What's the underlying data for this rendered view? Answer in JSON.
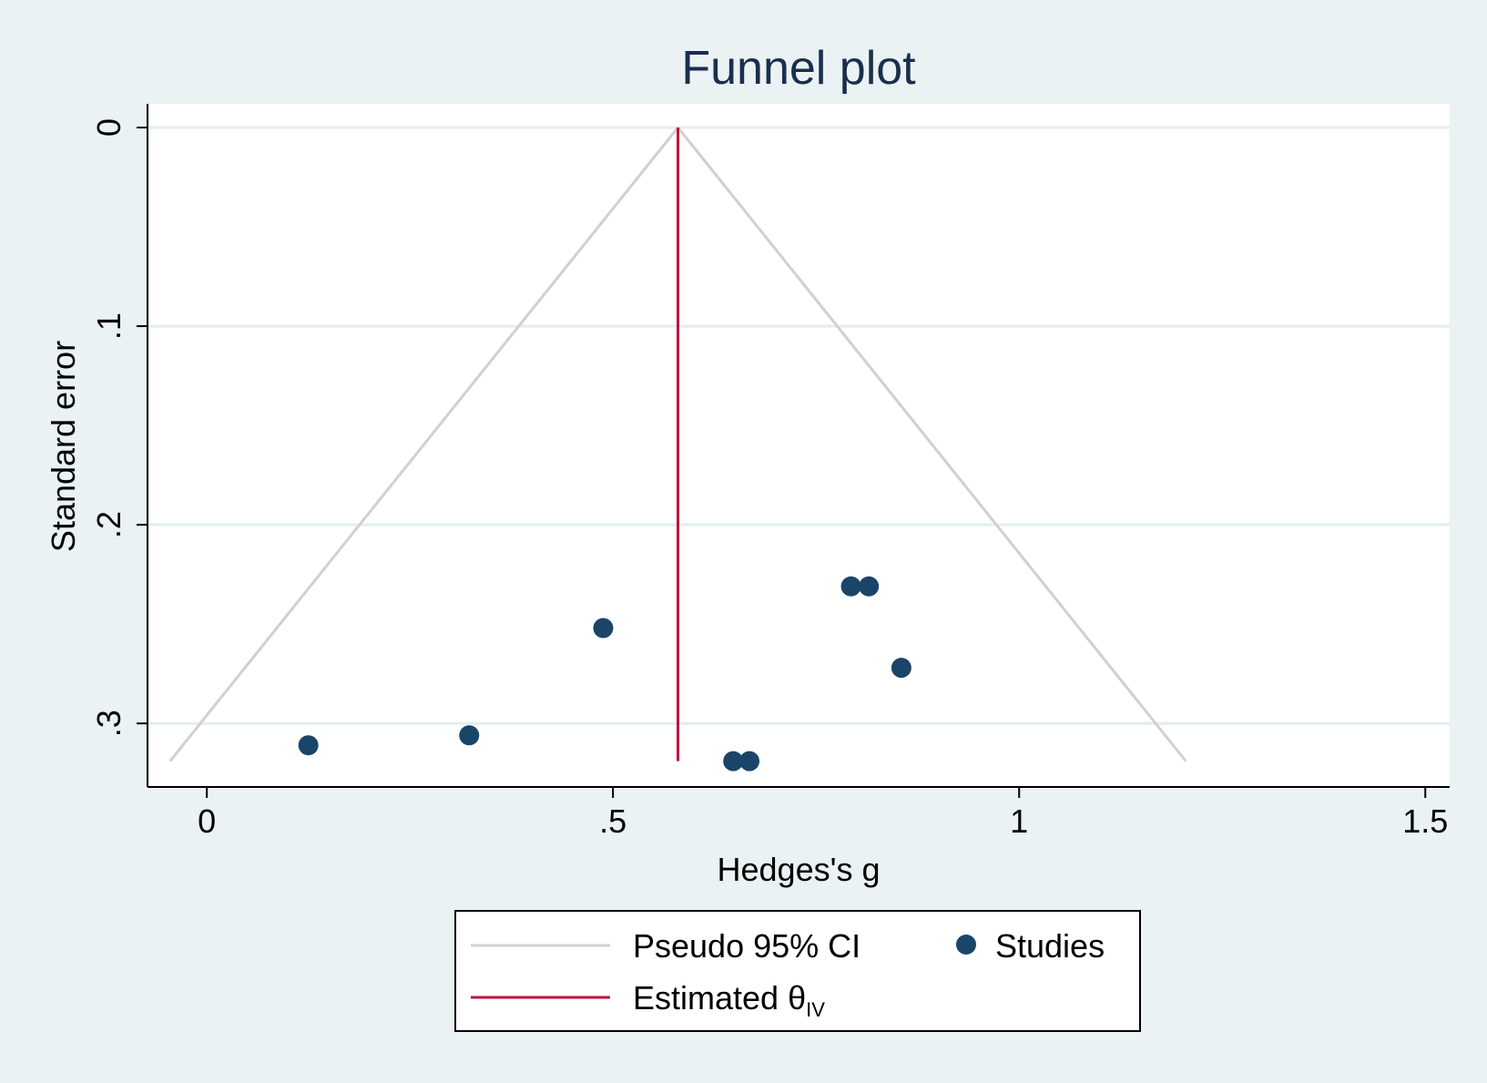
{
  "chart_data": {
    "type": "scatter",
    "title": "Funnel plot",
    "xlabel": "Hedges's g",
    "ylabel": "Standard error",
    "xlim": [
      -0.073,
      1.53
    ],
    "ylim": [
      0,
      0.332
    ],
    "y_reversed": true,
    "x_ticks": [
      {
        "value": 0,
        "label": "0"
      },
      {
        "value": 0.5,
        "label": ".5"
      },
      {
        "value": 1,
        "label": "1"
      },
      {
        "value": 1.5,
        "label": "1.5"
      }
    ],
    "y_ticks": [
      {
        "value": 0,
        "label": "0"
      },
      {
        "value": 0.1,
        "label": ".1"
      },
      {
        "value": 0.2,
        "label": ".2"
      },
      {
        "value": 0.3,
        "label": ".3"
      }
    ],
    "grid": "horizontal",
    "estimate": 0.58,
    "ci_max_se": 0.319,
    "ci_z": 1.96,
    "series": [
      {
        "name": "Studies",
        "points": [
          {
            "x": 0.125,
            "y": 0.311
          },
          {
            "x": 0.323,
            "y": 0.306
          },
          {
            "x": 0.488,
            "y": 0.252
          },
          {
            "x": 0.793,
            "y": 0.231
          },
          {
            "x": 0.815,
            "y": 0.231
          },
          {
            "x": 0.855,
            "y": 0.272
          },
          {
            "x": 0.648,
            "y": 0.319
          },
          {
            "x": 0.668,
            "y": 0.319
          }
        ]
      }
    ],
    "legend": {
      "placement": "bottom",
      "entries": [
        {
          "key": "ci",
          "label": "Pseudo 95% CI"
        },
        {
          "key": "studies",
          "label": "Studies"
        },
        {
          "key": "estimate",
          "label": "Estimated θ",
          "subscript": "IV"
        }
      ]
    },
    "colors": {
      "background": "#eaf2f3",
      "plot_area": "#ffffff",
      "grid": "#e3edef",
      "ci_line": "#d0d0d0",
      "estimate_line": "#c0133b",
      "points": "#1a4568",
      "title": "#1a2f4e"
    }
  }
}
